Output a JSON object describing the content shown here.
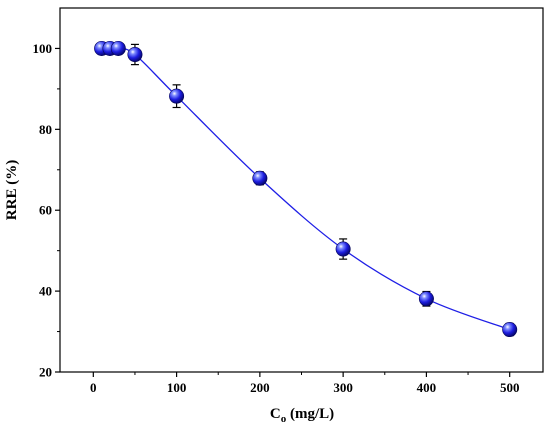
{
  "chart_data": {
    "type": "scatter",
    "xlabel": {
      "main": "C",
      "sub": "o",
      "rest": " (mg/L)"
    },
    "ylabel": "RRE (%)",
    "xlim": [
      -40,
      540
    ],
    "ylim": [
      20,
      110
    ],
    "xticks": [
      0,
      100,
      200,
      300,
      400,
      500
    ],
    "yticks": [
      20,
      40,
      60,
      80,
      100
    ],
    "xtick_labels": [
      "0",
      "100",
      "200",
      "300",
      "400",
      "500"
    ],
    "ytick_labels": [
      "20",
      "40",
      "60",
      "80",
      "100"
    ],
    "grid": false,
    "legend": "none",
    "series": [
      {
        "x": [
          10,
          20,
          30,
          50,
          100,
          200,
          300,
          400,
          500
        ],
        "y": [
          100,
          100,
          100,
          98.5,
          88.2,
          67.9,
          50.4,
          38.1,
          30.5
        ],
        "error": [
          0,
          0,
          0,
          2.5,
          2.8,
          1.6,
          2.5,
          1.8,
          1.5
        ],
        "color": "#1f1fe6",
        "line": "smooth",
        "marker": "sphere"
      }
    ]
  }
}
